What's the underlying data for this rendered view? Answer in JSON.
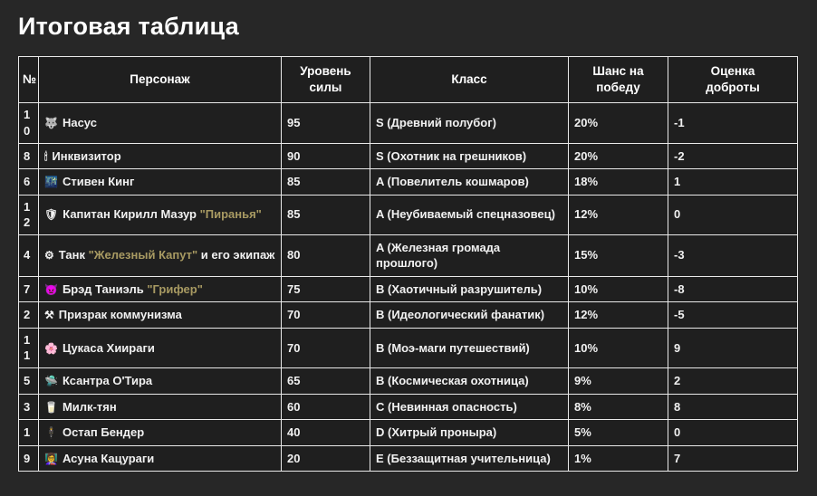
{
  "page": {
    "title": "Итоговая таблица"
  },
  "colors": {
    "nickname_accent": "#a89a62",
    "border": "#e9e9e9",
    "background": "#272727"
  },
  "chart_data": {
    "type": "table",
    "title": "Итоговая таблица",
    "columns": [
      "№",
      "Персонаж",
      "Уровень силы",
      "Класс",
      "Шанс на победу",
      "Оценка доброты"
    ],
    "rows": [
      {
        "num": "10",
        "icon": "🐺",
        "name_pre": "Насус",
        "nickname": "",
        "name_post": "",
        "power": "95",
        "class": "S (Древний полубог)",
        "win_chance": "20%",
        "kindness": "-1"
      },
      {
        "num": "8",
        "icon": "🕯",
        "name_pre": "Инквизитор",
        "nickname": "",
        "name_post": "",
        "power": "90",
        "class": "S (Охотник на грешников)",
        "win_chance": "20%",
        "kindness": "-2"
      },
      {
        "num": "6",
        "icon": "🌃",
        "name_pre": "Стивен Кинг",
        "nickname": "",
        "name_post": "",
        "power": "85",
        "class": "A (Повелитель кошмаров)",
        "win_chance": "18%",
        "kindness": "1"
      },
      {
        "num": "12",
        "icon": "🛡",
        "name_pre": "Капитан Кирилл Мазур ",
        "nickname": "\"Пиранья\"",
        "name_post": "",
        "power": "85",
        "class": "A (Неубиваемый спецназовец)",
        "win_chance": "12%",
        "kindness": "0"
      },
      {
        "num": "4",
        "icon": "⚙",
        "name_pre": "Танк ",
        "nickname": "\"Железный Капут\"",
        "name_post": " и его экипаж",
        "power": "80",
        "class": "A (Железная громада прошлого)",
        "win_chance": "15%",
        "kindness": "-3"
      },
      {
        "num": "7",
        "icon": "👿",
        "name_pre": "Брэд Таниэль ",
        "nickname": "\"Грифер\"",
        "name_post": "",
        "power": "75",
        "class": "B (Хаотичный разрушитель)",
        "win_chance": "10%",
        "kindness": "-8"
      },
      {
        "num": "2",
        "icon": "⚒",
        "name_pre": "Призрак коммунизма",
        "nickname": "",
        "name_post": "",
        "power": "70",
        "class": "B (Идеологический фанатик)",
        "win_chance": "12%",
        "kindness": "-5"
      },
      {
        "num": "11",
        "icon": "🌸",
        "name_pre": "Цукаса Хиираги",
        "nickname": "",
        "name_post": "",
        "power": "70",
        "class": "B (Моэ-маги путешествий)",
        "win_chance": "10%",
        "kindness": "9"
      },
      {
        "num": "5",
        "icon": "🛸",
        "name_pre": "Ксантра О'Тира",
        "nickname": "",
        "name_post": "",
        "power": "65",
        "class": "B (Космическая охотница)",
        "win_chance": "9%",
        "kindness": "2"
      },
      {
        "num": "3",
        "icon": "🥛",
        "name_pre": "Милк-тян",
        "nickname": "",
        "name_post": "",
        "power": "60",
        "class": "C (Невинная опасность)",
        "win_chance": "8%",
        "kindness": "8"
      },
      {
        "num": "1",
        "icon": "🕴",
        "name_pre": "Остап Бендер",
        "nickname": "",
        "name_post": "",
        "power": "40",
        "class": "D (Хитрый проныра)",
        "win_chance": "5%",
        "kindness": "0"
      },
      {
        "num": "9",
        "icon": "👩‍🏫",
        "name_pre": "Асуна Кацураги",
        "nickname": "",
        "name_post": "",
        "power": "20",
        "class": "E (Беззащитная учительница)",
        "win_chance": "1%",
        "kindness": "7"
      }
    ]
  }
}
